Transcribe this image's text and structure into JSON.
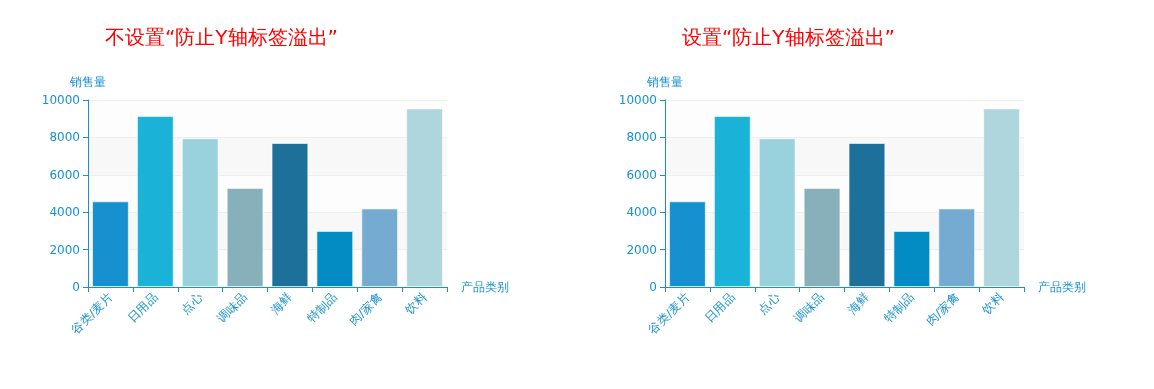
{
  "chart_data": [
    {
      "type": "bar",
      "title": "不设置“防止Y轴标签溢出”",
      "xlabel": "产品类别",
      "ylabel": "销售量",
      "categories": [
        "谷类/麦片",
        "日用品",
        "点心",
        "调味品",
        "海鲜",
        "特制品",
        "肉/家禽",
        "饮料"
      ],
      "values": [
        4580,
        9150,
        7950,
        5300,
        7700,
        3000,
        4200,
        9550
      ],
      "colors": [
        "#1790cf",
        "#1bb2d8",
        "#99d2dd",
        "#88b0bb",
        "#1c7099",
        "#038cc4",
        "#75abd0",
        "#afd6dd"
      ],
      "ylim": [
        0,
        10000
      ],
      "yticks": [
        0,
        2000,
        4000,
        6000,
        8000,
        10000
      ],
      "grid": "y"
    },
    {
      "type": "bar",
      "title": "设置“防止Y轴标签溢出”",
      "xlabel": "产品类别",
      "ylabel": "销售量",
      "categories": [
        "谷类/麦片",
        "日用品",
        "点心",
        "调味品",
        "海鲜",
        "特制品",
        "肉/家禽",
        "饮料"
      ],
      "values": [
        4580,
        9150,
        7950,
        5300,
        7700,
        3000,
        4200,
        9550
      ],
      "colors": [
        "#1790cf",
        "#1bb2d8",
        "#99d2dd",
        "#88b0bb",
        "#1c7099",
        "#038cc4",
        "#75abd0",
        "#afd6dd"
      ],
      "ylim": [
        0,
        10000
      ],
      "yticks": [
        0,
        2000,
        4000,
        6000,
        8000,
        10000
      ],
      "grid": "y"
    }
  ]
}
